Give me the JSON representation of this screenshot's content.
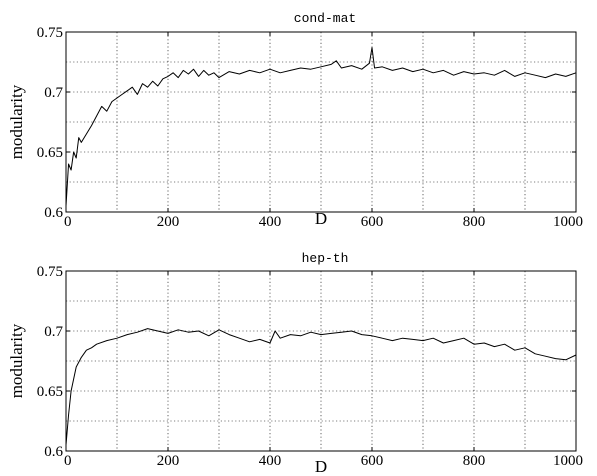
{
  "chart_data": [
    {
      "type": "line",
      "title": "cond-mat",
      "xlabel": "D",
      "ylabel": "modularity",
      "xlim": [
        0,
        1000
      ],
      "ylim": [
        0.6,
        0.75
      ],
      "xticks": [
        0,
        200,
        400,
        600,
        800,
        1000
      ],
      "yticks": [
        0.6,
        0.65,
        0.7,
        0.75
      ],
      "xtick_labels": [
        "0",
        "200",
        "400",
        "600",
        "800",
        "1000"
      ],
      "ytick_labels": [
        "0.6",
        "0.65",
        "0.7",
        "0.75"
      ],
      "grid": true,
      "series": [
        {
          "x": [
            0,
            5,
            10,
            15,
            20,
            25,
            30,
            40,
            50,
            60,
            70,
            80,
            90,
            100,
            110,
            120,
            130,
            140,
            150,
            160,
            170,
            180,
            190,
            200,
            210,
            220,
            230,
            240,
            250,
            260,
            270,
            280,
            290,
            300,
            320,
            340,
            360,
            380,
            400,
            420,
            440,
            460,
            480,
            500,
            520,
            530,
            540,
            560,
            580,
            595,
            600,
            605,
            620,
            640,
            660,
            680,
            700,
            720,
            740,
            760,
            780,
            800,
            820,
            840,
            860,
            880,
            900,
            920,
            940,
            960,
            980,
            1000
          ],
          "y": [
            0.605,
            0.64,
            0.635,
            0.65,
            0.645,
            0.662,
            0.658,
            0.665,
            0.672,
            0.68,
            0.688,
            0.684,
            0.692,
            0.695,
            0.698,
            0.701,
            0.704,
            0.698,
            0.707,
            0.704,
            0.709,
            0.705,
            0.711,
            0.713,
            0.716,
            0.712,
            0.718,
            0.715,
            0.719,
            0.713,
            0.718,
            0.714,
            0.716,
            0.712,
            0.717,
            0.715,
            0.718,
            0.716,
            0.719,
            0.716,
            0.718,
            0.72,
            0.719,
            0.721,
            0.723,
            0.726,
            0.72,
            0.722,
            0.719,
            0.724,
            0.737,
            0.72,
            0.721,
            0.718,
            0.72,
            0.717,
            0.719,
            0.716,
            0.718,
            0.714,
            0.717,
            0.715,
            0.716,
            0.714,
            0.718,
            0.713,
            0.716,
            0.714,
            0.712,
            0.715,
            0.713,
            0.716
          ]
        }
      ]
    },
    {
      "type": "line",
      "title": "hep-th",
      "xlabel": "D",
      "ylabel": "modularity",
      "xlim": [
        0,
        1000
      ],
      "ylim": [
        0.6,
        0.75
      ],
      "xticks": [
        0,
        200,
        400,
        600,
        800,
        1000
      ],
      "yticks": [
        0.6,
        0.65,
        0.7,
        0.75
      ],
      "xtick_labels": [
        "0",
        "200",
        "400",
        "600",
        "800",
        "1000"
      ],
      "ytick_labels": [
        "0.6",
        "0.65",
        "0.7",
        "0.75"
      ],
      "grid": true,
      "series": [
        {
          "x": [
            0,
            5,
            10,
            15,
            20,
            30,
            40,
            50,
            60,
            80,
            100,
            120,
            140,
            160,
            180,
            200,
            220,
            240,
            260,
            280,
            300,
            320,
            340,
            360,
            380,
            400,
            410,
            420,
            440,
            460,
            480,
            500,
            520,
            540,
            560,
            580,
            600,
            620,
            640,
            660,
            680,
            700,
            720,
            740,
            760,
            780,
            800,
            820,
            840,
            860,
            880,
            900,
            920,
            940,
            960,
            980,
            1000
          ],
          "y": [
            0.605,
            0.63,
            0.65,
            0.66,
            0.67,
            0.678,
            0.684,
            0.686,
            0.689,
            0.692,
            0.694,
            0.697,
            0.699,
            0.702,
            0.7,
            0.698,
            0.701,
            0.699,
            0.7,
            0.696,
            0.701,
            0.697,
            0.694,
            0.691,
            0.693,
            0.69,
            0.7,
            0.694,
            0.697,
            0.696,
            0.699,
            0.697,
            0.698,
            0.699,
            0.7,
            0.697,
            0.696,
            0.694,
            0.692,
            0.694,
            0.693,
            0.692,
            0.694,
            0.69,
            0.692,
            0.694,
            0.689,
            0.69,
            0.687,
            0.689,
            0.684,
            0.686,
            0.681,
            0.679,
            0.677,
            0.676,
            0.68
          ]
        }
      ]
    }
  ]
}
